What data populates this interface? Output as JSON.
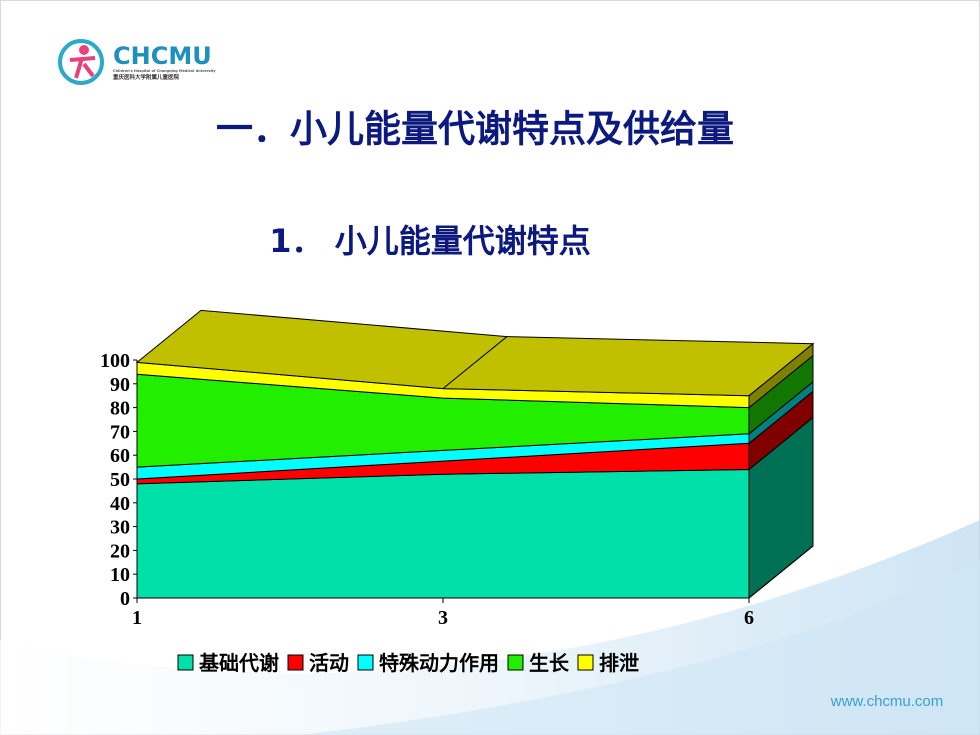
{
  "logo": {
    "name": "CHCMU",
    "english": "Children's Hospital of Chongqing Medical University",
    "chinese": "重庆医科大学附属儿童医院"
  },
  "slide": {
    "title": "一．小儿能量代谢特点及供给量",
    "subtitle": "1． 小儿能量代谢特点",
    "footer": "www.chcmu.com"
  },
  "chart_data": {
    "type": "stacked-area-3d",
    "categories": [
      "1",
      "3",
      "6"
    ],
    "series": [
      {
        "name": "基础代谢",
        "color": "#00e0a8",
        "values": [
          48,
          52,
          54
        ]
      },
      {
        "name": "活动",
        "color": "#ff0000",
        "values": [
          2,
          5.5,
          11
        ]
      },
      {
        "name": "特殊动力作用",
        "color": "#00ffff",
        "values": [
          5,
          4.5,
          4
        ]
      },
      {
        "name": "生长",
        "color": "#22ee00",
        "values": [
          39,
          22,
          11
        ]
      },
      {
        "name": "排泄",
        "color": "#ffff00",
        "values": [
          5,
          4,
          5
        ]
      }
    ],
    "top_color": "#c0c000",
    "ylim": [
      0,
      100
    ],
    "yticks": [
      0,
      10,
      20,
      30,
      40,
      50,
      60,
      70,
      80,
      90,
      100
    ]
  }
}
